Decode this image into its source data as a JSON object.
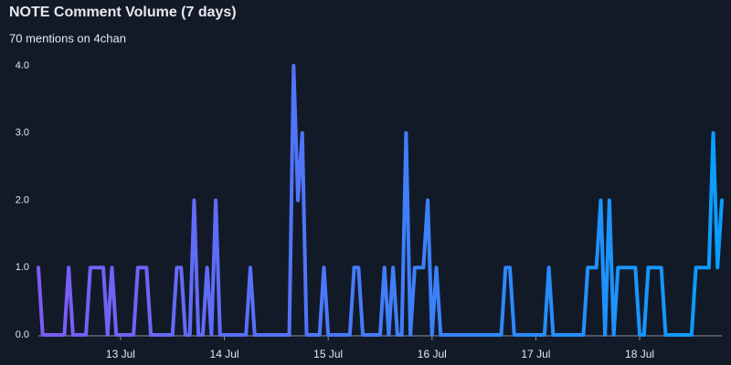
{
  "chart_data": {
    "type": "line",
    "title": "NOTE Comment Volume (7 days)",
    "subtitle": "70 mentions on 4chan",
    "categories": [
      null,
      null,
      null,
      null,
      null,
      null,
      null,
      null,
      null,
      null,
      null,
      null,
      null,
      null,
      null,
      null,
      null,
      null,
      null,
      "13 Jul",
      null,
      null,
      null,
      null,
      null,
      null,
      null,
      null,
      null,
      null,
      null,
      null,
      null,
      null,
      null,
      null,
      null,
      null,
      null,
      null,
      null,
      null,
      null,
      "14 Jul",
      null,
      null,
      null,
      null,
      null,
      null,
      null,
      null,
      null,
      null,
      null,
      null,
      null,
      null,
      null,
      null,
      null,
      null,
      null,
      null,
      null,
      null,
      null,
      "15 Jul",
      null,
      null,
      null,
      null,
      null,
      null,
      null,
      null,
      null,
      null,
      null,
      null,
      null,
      null,
      null,
      null,
      null,
      null,
      null,
      null,
      null,
      null,
      null,
      "16 Jul",
      null,
      null,
      null,
      null,
      null,
      null,
      null,
      null,
      null,
      null,
      null,
      null,
      null,
      null,
      null,
      null,
      null,
      null,
      null,
      null,
      null,
      null,
      null,
      "17 Jul",
      null,
      null,
      null,
      null,
      null,
      null,
      null,
      null,
      null,
      null,
      null,
      null,
      null,
      null,
      null,
      null,
      null,
      null,
      null,
      null,
      null,
      null,
      null,
      "18 Jul",
      null,
      null,
      null,
      null,
      null,
      null,
      null,
      null,
      null,
      null,
      null,
      null,
      null,
      null,
      null,
      null,
      null,
      null,
      null
    ],
    "values": [
      1,
      0,
      0,
      0,
      0,
      0,
      0,
      1,
      0,
      0,
      0,
      0,
      1,
      1,
      1,
      1,
      0,
      1,
      0,
      0,
      0,
      0,
      0,
      1,
      1,
      1,
      0,
      0,
      0,
      0,
      0,
      0,
      1,
      1,
      0,
      0,
      2,
      0,
      0,
      1,
      0,
      2,
      0,
      0,
      0,
      0,
      0,
      0,
      0,
      1,
      0,
      0,
      0,
      0,
      0,
      0,
      0,
      0,
      0,
      4,
      2,
      3,
      0,
      0,
      0,
      0,
      1,
      0,
      0,
      0,
      0,
      0,
      0,
      1,
      1,
      0,
      0,
      0,
      0,
      0,
      1,
      0,
      1,
      0,
      0,
      3,
      0,
      1,
      1,
      1,
      2,
      0,
      1,
      0,
      0,
      0,
      0,
      0,
      0,
      0,
      0,
      0,
      0,
      0,
      0,
      0,
      0,
      0,
      1,
      1,
      0,
      0,
      0,
      0,
      0,
      0,
      0,
      0,
      1,
      0,
      0,
      0,
      0,
      0,
      0,
      0,
      0,
      1,
      1,
      1,
      2,
      0,
      2,
      0,
      1,
      1,
      1,
      1,
      1,
      0,
      0,
      1,
      1,
      1,
      1,
      0,
      0,
      0,
      0,
      0,
      0,
      0,
      1,
      1,
      1,
      1,
      3,
      1,
      2
    ],
    "gradient": [
      "#7b5cf6",
      "#0a9dff"
    ],
    "ylim": [
      0,
      4
    ],
    "yticks": [
      {
        "value": 0,
        "label": "0.0"
      },
      {
        "value": 1,
        "label": "1.0"
      },
      {
        "value": 2,
        "label": "2.0"
      },
      {
        "value": 3,
        "label": "3.0"
      },
      {
        "value": 4,
        "label": "4.0"
      }
    ]
  }
}
